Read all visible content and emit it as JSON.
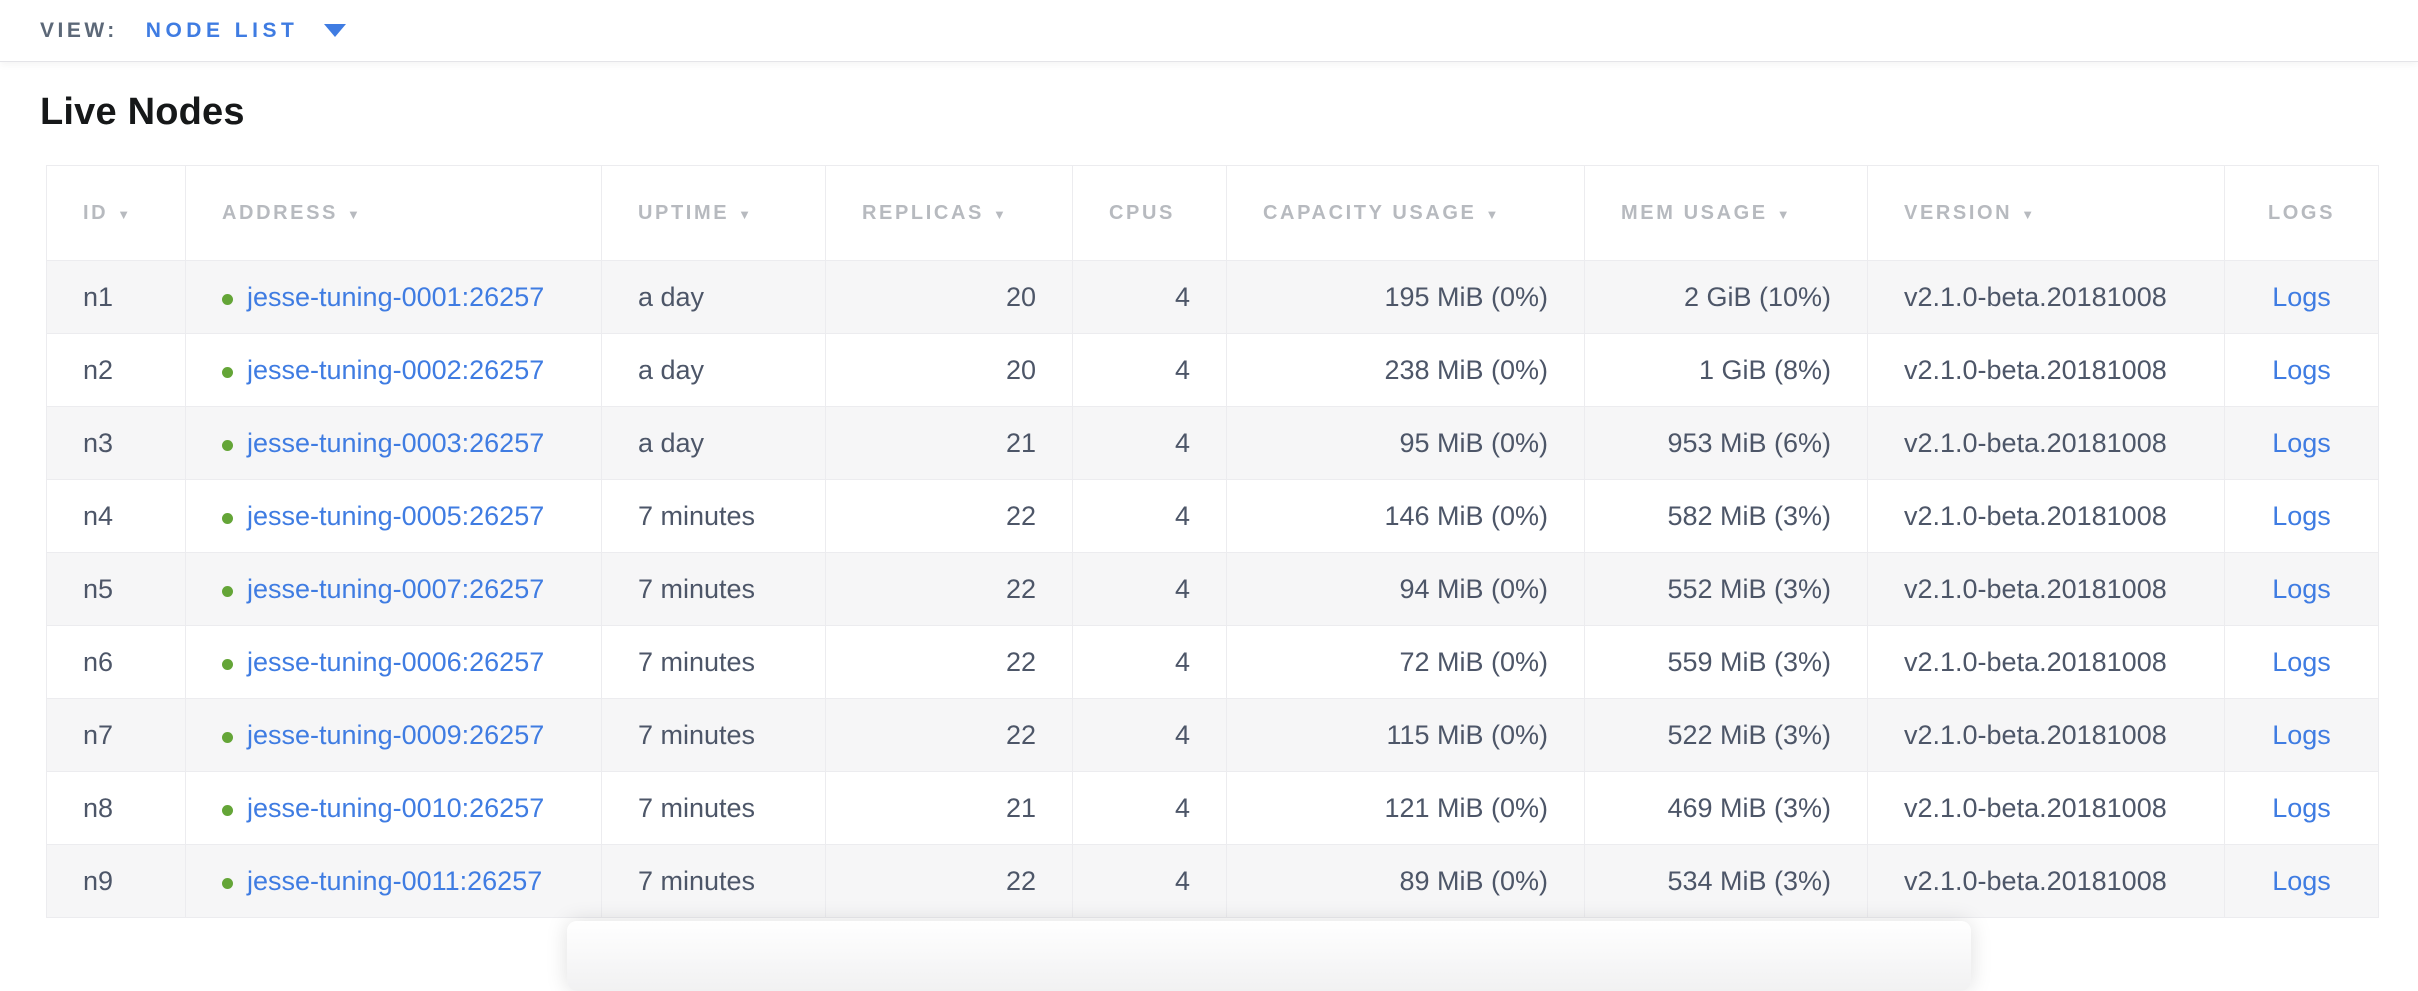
{
  "view_bar": {
    "label": "VIEW:",
    "selected": "NODE LIST"
  },
  "page": {
    "title": "Live Nodes"
  },
  "icons": {
    "sort_desc": "▼",
    "caret_down": "caret-down",
    "node_status_healthy": "green-dot"
  },
  "colors": {
    "accent_blue": "#3f7ce2",
    "healthy_green": "#64a537",
    "header_text": "#b7babf",
    "cell_text": "#4d5668",
    "row_stripe": "#f6f6f7"
  },
  "table": {
    "columns": [
      {
        "label": "ID",
        "sortable": true,
        "align": "left"
      },
      {
        "label": "ADDRESS",
        "sortable": true,
        "align": "left"
      },
      {
        "label": "UPTIME",
        "sortable": true,
        "align": "left"
      },
      {
        "label": "REPLICAS",
        "sortable": true,
        "align": "right"
      },
      {
        "label": "CPUS",
        "sortable": false,
        "align": "right"
      },
      {
        "label": "CAPACITY USAGE",
        "sortable": true,
        "align": "right"
      },
      {
        "label": "MEM USAGE",
        "sortable": true,
        "align": "right"
      },
      {
        "label": "VERSION",
        "sortable": true,
        "align": "left"
      },
      {
        "label": "LOGS",
        "sortable": false,
        "align": "center"
      }
    ],
    "rows": [
      {
        "id": "n1",
        "status": "healthy",
        "address": "jesse-tuning-0001:26257",
        "uptime": "a day",
        "replicas": "20",
        "cpus": "4",
        "capacity": "195 MiB (0%)",
        "mem": "2 GiB (10%)",
        "version": "v2.1.0-beta.20181008",
        "logs": "Logs"
      },
      {
        "id": "n2",
        "status": "healthy",
        "address": "jesse-tuning-0002:26257",
        "uptime": "a day",
        "replicas": "20",
        "cpus": "4",
        "capacity": "238 MiB (0%)",
        "mem": "1 GiB (8%)",
        "version": "v2.1.0-beta.20181008",
        "logs": "Logs"
      },
      {
        "id": "n3",
        "status": "healthy",
        "address": "jesse-tuning-0003:26257",
        "uptime": "a day",
        "replicas": "21",
        "cpus": "4",
        "capacity": "95 MiB (0%)",
        "mem": "953 MiB (6%)",
        "version": "v2.1.0-beta.20181008",
        "logs": "Logs"
      },
      {
        "id": "n4",
        "status": "healthy",
        "address": "jesse-tuning-0005:26257",
        "uptime": "7 minutes",
        "replicas": "22",
        "cpus": "4",
        "capacity": "146 MiB (0%)",
        "mem": "582 MiB (3%)",
        "version": "v2.1.0-beta.20181008",
        "logs": "Logs"
      },
      {
        "id": "n5",
        "status": "healthy",
        "address": "jesse-tuning-0007:26257",
        "uptime": "7 minutes",
        "replicas": "22",
        "cpus": "4",
        "capacity": "94 MiB (0%)",
        "mem": "552 MiB (3%)",
        "version": "v2.1.0-beta.20181008",
        "logs": "Logs"
      },
      {
        "id": "n6",
        "status": "healthy",
        "address": "jesse-tuning-0006:26257",
        "uptime": "7 minutes",
        "replicas": "22",
        "cpus": "4",
        "capacity": "72 MiB (0%)",
        "mem": "559 MiB (3%)",
        "version": "v2.1.0-beta.20181008",
        "logs": "Logs"
      },
      {
        "id": "n7",
        "status": "healthy",
        "address": "jesse-tuning-0009:26257",
        "uptime": "7 minutes",
        "replicas": "22",
        "cpus": "4",
        "capacity": "115 MiB (0%)",
        "mem": "522 MiB (3%)",
        "version": "v2.1.0-beta.20181008",
        "logs": "Logs"
      },
      {
        "id": "n8",
        "status": "healthy",
        "address": "jesse-tuning-0010:26257",
        "uptime": "7 minutes",
        "replicas": "21",
        "cpus": "4",
        "capacity": "121 MiB (0%)",
        "mem": "469 MiB (3%)",
        "version": "v2.1.0-beta.20181008",
        "logs": "Logs"
      },
      {
        "id": "n9",
        "status": "healthy",
        "address": "jesse-tuning-0011:26257",
        "uptime": "7 minutes",
        "replicas": "22",
        "cpus": "4",
        "capacity": "89 MiB (0%)",
        "mem": "534 MiB (3%)",
        "version": "v2.1.0-beta.20181008",
        "logs": "Logs"
      }
    ]
  }
}
